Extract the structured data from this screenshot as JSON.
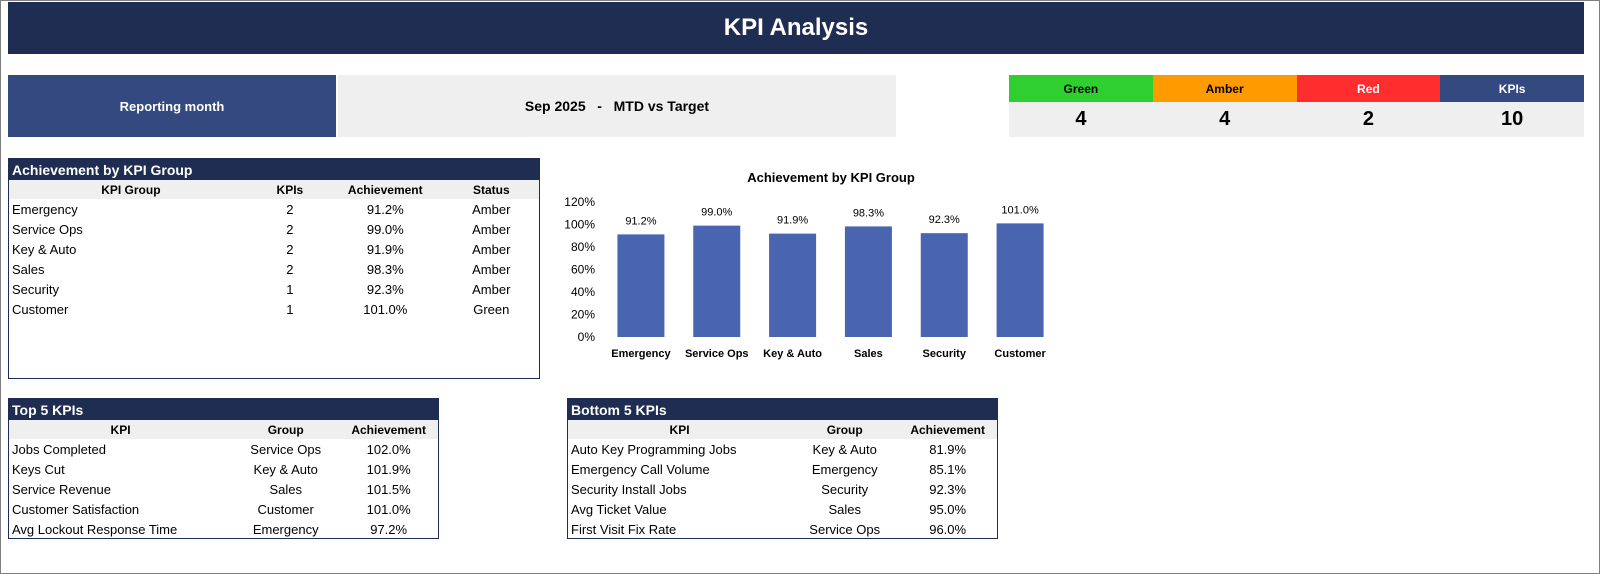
{
  "title": "KPI Analysis",
  "reporting": {
    "label": "Reporting month",
    "value": "Sep 2025   -   MTD vs Target"
  },
  "status": {
    "green": {
      "label": "Green",
      "value": "4",
      "color": "#2fcf2f"
    },
    "amber": {
      "label": "Amber",
      "value": "4",
      "color": "#ff9a00"
    },
    "red": {
      "label": "Red",
      "value": "2",
      "color": "#ff2d2d"
    },
    "kpis": {
      "label": "KPIs",
      "value": "10",
      "color": "#34497f"
    }
  },
  "group_table": {
    "title": "Achievement by KPI Group",
    "headers": [
      "KPI Group",
      "KPIs",
      "Achievement",
      "Status"
    ],
    "rows": [
      [
        "Emergency",
        "2",
        "91.2%",
        "Amber"
      ],
      [
        "Service Ops",
        "2",
        "99.0%",
        "Amber"
      ],
      [
        "Key & Auto",
        "2",
        "91.9%",
        "Amber"
      ],
      [
        "Sales",
        "2",
        "98.3%",
        "Amber"
      ],
      [
        "Security",
        "1",
        "92.3%",
        "Amber"
      ],
      [
        "Customer",
        "1",
        "101.0%",
        "Green"
      ]
    ]
  },
  "top_table": {
    "title": "Top 5 KPIs",
    "headers": [
      "KPI",
      "Group",
      "Achievement"
    ],
    "rows": [
      [
        "Jobs Completed",
        "Service Ops",
        "102.0%"
      ],
      [
        "Keys Cut",
        "Key & Auto",
        "101.9%"
      ],
      [
        "Service Revenue",
        "Sales",
        "101.5%"
      ],
      [
        "Customer Satisfaction",
        "Customer",
        "101.0%"
      ],
      [
        "Avg Lockout Response Time",
        "Emergency",
        "97.2%"
      ]
    ]
  },
  "bottom_table": {
    "title": "Bottom 5 KPIs",
    "headers": [
      "KPI",
      "Group",
      "Achievement"
    ],
    "rows": [
      [
        "Auto Key Programming Jobs",
        "Key & Auto",
        "81.9%"
      ],
      [
        "Emergency Call Volume",
        "Emergency",
        "85.1%"
      ],
      [
        "Security Install Jobs",
        "Security",
        "92.3%"
      ],
      [
        "Avg Ticket Value",
        "Sales",
        "95.0%"
      ],
      [
        "First Visit Fix Rate",
        "Service Ops",
        "96.0%"
      ]
    ]
  },
  "chart_data": {
    "type": "bar",
    "title": "Achievement by KPI Group",
    "categories": [
      "Emergency",
      "Service Ops",
      "Key & Auto",
      "Sales",
      "Security",
      "Customer"
    ],
    "values": [
      91.2,
      99.0,
      91.9,
      98.3,
      92.3,
      101.0
    ],
    "data_labels": [
      "91.2%",
      "99.0%",
      "91.9%",
      "98.3%",
      "92.3%",
      "101.0%"
    ],
    "yticks": [
      "0%",
      "20%",
      "40%",
      "60%",
      "80%",
      "100%",
      "120%"
    ],
    "ylim": [
      0,
      120
    ],
    "bar_color": "#4a65b0",
    "grid": false,
    "legend": "none"
  }
}
